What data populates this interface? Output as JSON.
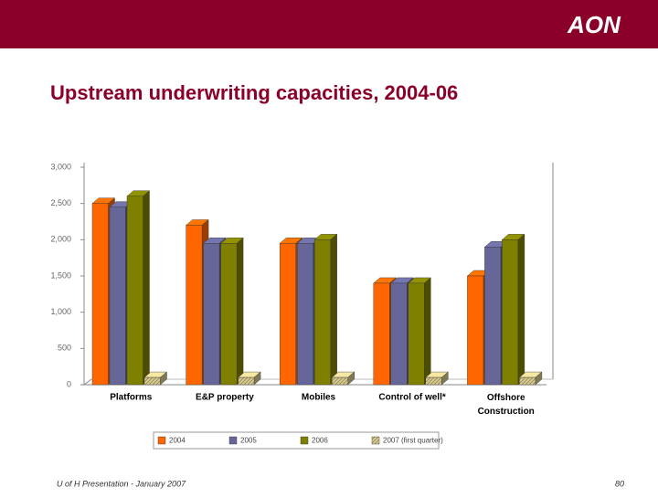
{
  "header": {
    "logo": "AON"
  },
  "footer": {
    "left": "U of H Presentation - January 2007",
    "page": "80"
  },
  "chart_data": {
    "type": "bar3d",
    "title": "Upstream underwriting capacities, 2004-06",
    "categories": [
      "Platforms",
      "E&P property",
      "Mobiles",
      "Control of well*",
      "Offshore Construction"
    ],
    "series": [
      {
        "name": "2004",
        "color": "#ff6600",
        "values": [
          2500,
          2200,
          1950,
          1400,
          1500
        ]
      },
      {
        "name": "2005",
        "color": "#666699",
        "values": [
          2450,
          1950,
          1950,
          1400,
          1900
        ]
      },
      {
        "name": "2006",
        "color": "#808000",
        "values": [
          2600,
          1950,
          2000,
          1400,
          2000
        ]
      },
      {
        "name": "2007 (first quarter)",
        "color": "#d6c98e",
        "values": [
          100,
          100,
          100,
          100,
          100
        ]
      }
    ],
    "ylim": [
      0,
      3000
    ],
    "yticks": [
      0,
      500,
      {
        "value": 1000,
        "label": "1,000"
      },
      {
        "value": 1500,
        "label": "1,500"
      },
      {
        "value": 2000,
        "label": "2,000"
      },
      {
        "value": 2500,
        "label": "2,500"
      },
      {
        "value": 3000,
        "label": "3,000"
      }
    ],
    "grid": false,
    "legend": "bottom"
  }
}
